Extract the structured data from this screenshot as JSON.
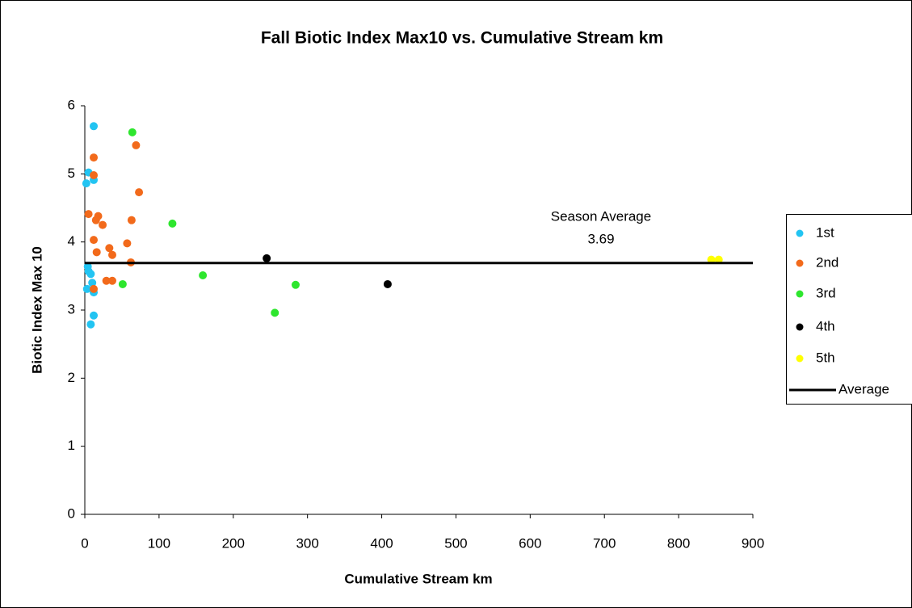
{
  "chart_data": {
    "type": "scatter",
    "title": "Fall Biotic Index Max10 vs. Cumulative Stream km",
    "xlabel": "Cumulative Stream km",
    "ylabel": "Biotic Index Max 10",
    "annotation": "Season Average",
    "xlim": [
      0,
      900
    ],
    "xticks": [
      0,
      100,
      200,
      300,
      400,
      500,
      600,
      700,
      800,
      900
    ],
    "ylim": [
      0,
      6
    ],
    "yticks": [
      0,
      1,
      2,
      3,
      4,
      5,
      6
    ],
    "legend": "right",
    "series": [
      {
        "name": "1st",
        "color": "#22c4f2",
        "x": [
          12,
          5,
          2,
          12,
          4,
          5,
          8,
          10,
          3,
          12,
          12,
          8
        ],
        "values": [
          5.7,
          5.02,
          4.86,
          4.91,
          3.64,
          3.57,
          3.53,
          3.4,
          3.31,
          3.26,
          2.92,
          2.79
        ]
      },
      {
        "name": "2nd",
        "color": "#f26a1b",
        "x": [
          12,
          12,
          69,
          73,
          5,
          18,
          15,
          24,
          63,
          12,
          57,
          33,
          16,
          37,
          62,
          29,
          37,
          12
        ],
        "values": [
          5.24,
          4.98,
          5.42,
          4.73,
          4.41,
          4.38,
          4.32,
          4.25,
          4.32,
          4.03,
          3.98,
          3.91,
          3.85,
          3.81,
          3.7,
          3.43,
          3.43,
          3.31
        ]
      },
      {
        "name": "3rd",
        "color": "#2ee62e",
        "x": [
          64,
          118,
          159,
          51,
          256,
          284
        ],
        "values": [
          5.61,
          4.27,
          3.51,
          3.38,
          2.96,
          3.37
        ]
      },
      {
        "name": "4th",
        "color": "#000000",
        "x": [
          245,
          408
        ],
        "values": [
          3.76,
          3.38
        ]
      },
      {
        "name": "5th",
        "color": "#ffff00",
        "x": [
          844,
          854
        ],
        "values": [
          3.74,
          3.74
        ]
      },
      {
        "name": "Average",
        "type": "line",
        "color": "#000000",
        "x": [
          0,
          900
        ],
        "values": [
          3.69,
          3.69
        ]
      }
    ]
  }
}
